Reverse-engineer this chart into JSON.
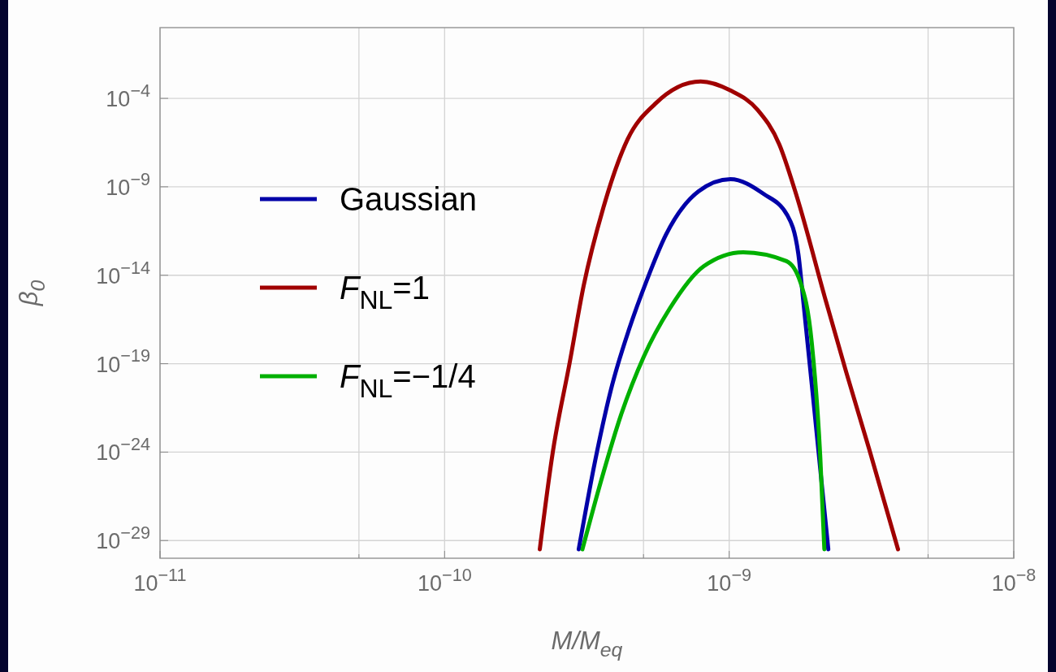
{
  "chart_data": {
    "type": "line",
    "xlabel": "M/M$_{eq}$",
    "ylabel": "β$_{0}$",
    "log": "xy",
    "grid": true,
    "legend": "left",
    "line_style": "solid",
    "xlim": [
      1e-11,
      1e-08
    ],
    "ylim": [
      1e-30,
      1
    ],
    "xticks": [
      {
        "value": 1e-11,
        "label": "10$^{−11}$"
      },
      {
        "value": 5e-11,
        "label": null
      },
      {
        "value": 1e-10,
        "label": "10$^{−10}$"
      },
      {
        "value": 5e-10,
        "label": null
      },
      {
        "value": 1e-09,
        "label": "10$^{−9}$"
      },
      {
        "value": 5e-09,
        "label": null
      },
      {
        "value": 1e-08,
        "label": "10$^{−8}$"
      }
    ],
    "yticks": [
      {
        "value": 1e-29,
        "label": "10$^{−29}$"
      },
      {
        "value": 1e-24,
        "label": "10$^{−24}$"
      },
      {
        "value": 1e-19,
        "label": "10$^{−19}$"
      },
      {
        "value": 1e-14,
        "label": "10$^{−14}$"
      },
      {
        "value": 1e-09,
        "label": "10$^{−9}$"
      },
      {
        "value": 0.0001,
        "label": "10$^{−4}$"
      }
    ],
    "series": [
      {
        "name": "Gaussian",
        "color": "#0000a8",
        "x": [
          2.96e-10,
          3.38e-10,
          3.88e-10,
          4.46e-10,
          5.13e-10,
          6e-10,
          7.8e-10,
          1.01e-09,
          1.32e-09,
          1.6e-09,
          1.75e-09,
          1.82e-09,
          2e-09,
          2.23e-09
        ],
        "values": [
          3.2e-30,
          3.2e-25,
          6.3e-21,
          1e-17,
          5e-15,
          2e-12,
          5.5e-10,
          2.7e-09,
          4e-10,
          2.5e-11,
          1.6e-13,
          4e-16,
          1.3e-22,
          3.2e-30
        ]
      },
      {
        "name": "F$_{NL}$=1",
        "color": "#a00000",
        "x": [
          2.16e-10,
          2.4e-10,
          2.75e-10,
          3.08e-10,
          3.61e-10,
          4.4e-10,
          5.5e-10,
          7.94e-10,
          1.01e-09,
          1.26e-09,
          1.5e-09,
          1.71e-09,
          2.19e-09,
          2.58e-09,
          3.1e-09,
          3.92e-09
        ],
        "values": [
          3.2e-30,
          1e-24,
          1.1e-19,
          2.5e-15,
          6.3e-11,
          5e-07,
          5e-05,
          0.00091,
          0.00028,
          2.2e-05,
          2.5e-07,
          5e-10,
          3.2e-16,
          3.2e-20,
          1.6e-24,
          3.2e-30
        ]
      },
      {
        "name": "F$_{NL}$=−1/4",
        "color": "#00b000",
        "x": [
          3.05e-10,
          3.55e-10,
          4.17e-10,
          5.01e-10,
          6.18e-10,
          8.13e-10,
          1.12e-09,
          1.59e-09,
          1.78e-09,
          1.95e-09,
          2.09e-09,
          2.16e-09
        ],
        "values": [
          3.2e-30,
          2.5e-26,
          1.3e-22,
          2.5e-19,
          1.3e-16,
          3.2e-14,
          2e-13,
          6.3e-14,
          4e-15,
          1.6e-18,
          5e-25,
          3.2e-30
        ]
      }
    ]
  }
}
